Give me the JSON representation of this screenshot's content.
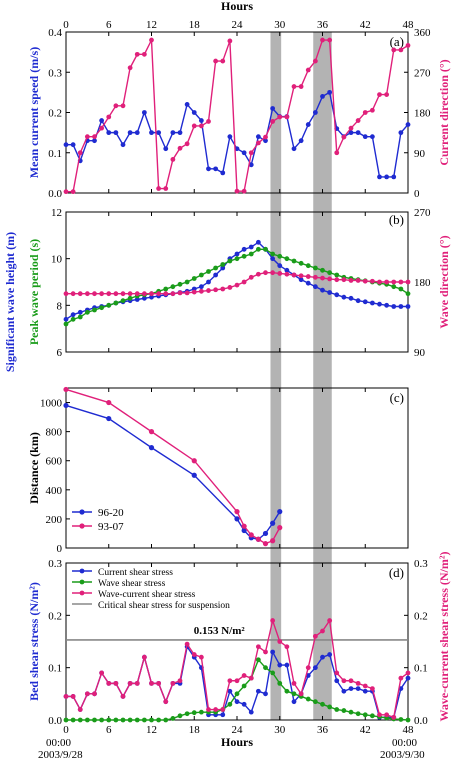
{
  "chart_data": [
    {
      "id": "a",
      "type": "line",
      "panel_label": "(a)",
      "top_axis_label": "Hours",
      "xlim": [
        0,
        48
      ],
      "xticks": [
        0,
        6,
        12,
        18,
        24,
        30,
        36,
        42,
        48
      ],
      "left_axis": {
        "label": "Mean current speed (m/s)",
        "ylim": [
          0,
          0.4
        ],
        "ticks": [
          "0.0",
          "0.1",
          "0.2",
          "0.3",
          "0.4"
        ],
        "color": "#1f2bd1"
      },
      "right_axis": {
        "label": "Current direction (°)",
        "ylim": [
          0,
          360
        ],
        "ticks": [
          "0",
          "90",
          "180",
          "270",
          "360"
        ],
        "color": "#e0207a"
      },
      "shaded_x": [
        [
          28.7,
          30.2
        ],
        [
          34.7,
          37.3
        ]
      ],
      "series": [
        {
          "axis": "left",
          "color": "#1f2bd1",
          "x": [
            0,
            1,
            2,
            3,
            4,
            5,
            6,
            7,
            8,
            9,
            10,
            11,
            12,
            13,
            14,
            15,
            16,
            17,
            18,
            19,
            20,
            21,
            22,
            23,
            24,
            25,
            26,
            27,
            28,
            29,
            30,
            31,
            32,
            33,
            34,
            35,
            36,
            37,
            38,
            39,
            40,
            41,
            42,
            43,
            44,
            45,
            46,
            47,
            48
          ],
          "y": [
            0.12,
            0.12,
            0.08,
            0.13,
            0.13,
            0.18,
            0.15,
            0.15,
            0.12,
            0.15,
            0.15,
            0.2,
            0.15,
            0.15,
            0.11,
            0.15,
            0.15,
            0.22,
            0.2,
            0.18,
            0.06,
            0.06,
            0.05,
            0.14,
            0.11,
            0.1,
            0.07,
            0.14,
            0.13,
            0.21,
            0.19,
            0.19,
            0.11,
            0.13,
            0.17,
            0.2,
            0.24,
            0.25,
            0.16,
            0.14,
            0.15,
            0.15,
            0.14,
            0.14,
            0.04,
            0.04,
            0.04,
            0.15,
            0.17
          ]
        },
        {
          "axis": "right",
          "color": "#e0207a",
          "x": [
            0,
            1,
            2,
            3,
            4,
            5,
            6,
            7,
            8,
            9,
            10,
            11,
            12,
            13,
            14,
            15,
            16,
            17,
            18,
            19,
            20,
            21,
            22,
            23,
            24,
            25,
            26,
            27,
            28,
            29,
            30,
            31,
            32,
            33,
            34,
            35,
            36,
            37,
            38,
            39,
            40,
            41,
            42,
            43,
            44,
            45,
            46,
            47,
            48
          ],
          "y": [
            3,
            3,
            90,
            126,
            126,
            145,
            170,
            195,
            195,
            280,
            310,
            310,
            342,
            10,
            10,
            75,
            100,
            110,
            150,
            150,
            160,
            295,
            295,
            340,
            4,
            4,
            90,
            112,
            125,
            160,
            170,
            170,
            238,
            238,
            275,
            295,
            342,
            342,
            90,
            125,
            145,
            162,
            180,
            185,
            220,
            220,
            320,
            320,
            330
          ]
        }
      ]
    },
    {
      "id": "b",
      "type": "line",
      "panel_label": "(b)",
      "xlim": [
        0,
        48
      ],
      "left_axis": {
        "label": "Significant wave height (m)",
        "label2": "Peak wave period (s)",
        "ylim": [
          6,
          12
        ],
        "ticks": [
          "6",
          "8",
          "10",
          "12"
        ]
      },
      "right_axis": {
        "label": "Wave direction (°)",
        "ylim": [
          90,
          270
        ],
        "ticks": [
          "90",
          "180",
          "270"
        ],
        "color": "#e0207a"
      },
      "series": [
        {
          "axis": "left",
          "color": "#1f2bd1",
          "x": [
            0,
            1,
            2,
            3,
            4,
            5,
            6,
            7,
            8,
            9,
            10,
            11,
            12,
            13,
            14,
            15,
            16,
            17,
            18,
            19,
            20,
            21,
            22,
            23,
            24,
            25,
            26,
            27,
            28,
            29,
            30,
            31,
            32,
            33,
            34,
            35,
            36,
            37,
            38,
            39,
            40,
            41,
            42,
            43,
            44,
            45,
            46,
            47,
            48
          ],
          "y": [
            7.4,
            7.6,
            7.7,
            7.8,
            7.9,
            7.95,
            8.0,
            8.1,
            8.15,
            8.2,
            8.25,
            8.3,
            8.35,
            8.4,
            8.45,
            8.5,
            8.55,
            8.6,
            8.7,
            8.8,
            9.0,
            9.3,
            9.6,
            10.0,
            10.2,
            10.4,
            10.5,
            10.7,
            10.4,
            10.0,
            9.7,
            9.5,
            9.3,
            9.1,
            8.95,
            8.8,
            8.65,
            8.55,
            8.45,
            8.35,
            8.3,
            8.2,
            8.15,
            8.1,
            8.05,
            8.0,
            7.95,
            7.95,
            7.95
          ]
        },
        {
          "axis": "left",
          "color": "#1a9c1a",
          "x": [
            0,
            1,
            2,
            3,
            4,
            5,
            6,
            7,
            8,
            9,
            10,
            11,
            12,
            13,
            14,
            15,
            16,
            17,
            18,
            19,
            20,
            21,
            22,
            23,
            24,
            25,
            26,
            27,
            28,
            29,
            30,
            31,
            32,
            33,
            34,
            35,
            36,
            37,
            38,
            39,
            40,
            41,
            42,
            43,
            44,
            45,
            46,
            47,
            48
          ],
          "y": [
            7.2,
            7.4,
            7.5,
            7.7,
            7.8,
            7.9,
            8.0,
            8.1,
            8.2,
            8.3,
            8.4,
            8.45,
            8.5,
            8.6,
            8.7,
            8.8,
            8.9,
            9.0,
            9.15,
            9.3,
            9.45,
            9.6,
            9.75,
            9.9,
            10.0,
            10.1,
            10.2,
            10.4,
            10.4,
            10.2,
            10.1,
            10.0,
            9.9,
            9.8,
            9.7,
            9.6,
            9.5,
            9.4,
            9.3,
            9.2,
            9.15,
            9.1,
            9.05,
            9.0,
            8.95,
            8.9,
            8.8,
            8.7,
            8.5
          ]
        },
        {
          "axis": "right",
          "color": "#e0207a",
          "x": [
            0,
            1,
            2,
            3,
            4,
            5,
            6,
            7,
            8,
            9,
            10,
            11,
            12,
            13,
            14,
            15,
            16,
            17,
            18,
            19,
            20,
            21,
            22,
            23,
            24,
            25,
            26,
            27,
            28,
            29,
            30,
            31,
            32,
            33,
            34,
            35,
            36,
            37,
            38,
            39,
            40,
            41,
            42,
            43,
            44,
            45,
            46,
            47,
            48
          ],
          "y": [
            165,
            165,
            165,
            165,
            165,
            165,
            165,
            165,
            165,
            165,
            165,
            165,
            165,
            165,
            165,
            165,
            166,
            166,
            167,
            168,
            169,
            170,
            171,
            173,
            176,
            180,
            186,
            190,
            192,
            192,
            191,
            190,
            189,
            188,
            187,
            186,
            185,
            184,
            183,
            183,
            182,
            182,
            181,
            181,
            180,
            180,
            180,
            180,
            180
          ]
        }
      ]
    },
    {
      "id": "c",
      "type": "line",
      "panel_label": "(c)",
      "xlim": [
        0,
        48
      ],
      "ylabel": "Distance (km)",
      "ylim": [
        0,
        1100
      ],
      "yticks": [
        "0",
        "200",
        "400",
        "600",
        "800",
        "1000"
      ],
      "series": [
        {
          "name": "96-20",
          "color": "#1f2bd1",
          "x": [
            0,
            6,
            12,
            18,
            24,
            25,
            26,
            27,
            28,
            29,
            30
          ],
          "y": [
            980,
            890,
            690,
            500,
            200,
            120,
            70,
            60,
            100,
            170,
            250
          ]
        },
        {
          "name": "93-07",
          "color": "#e0207a",
          "x": [
            0,
            6,
            12,
            18,
            24,
            25,
            26,
            27,
            28,
            29,
            30
          ],
          "y": [
            1090,
            1000,
            800,
            600,
            250,
            150,
            90,
            60,
            30,
            50,
            140
          ]
        }
      ]
    },
    {
      "id": "d",
      "type": "line",
      "panel_label": "(d)",
      "xlim": [
        0,
        48
      ],
      "xticks": [
        0,
        6,
        12,
        18,
        24,
        30,
        36,
        42,
        48
      ],
      "bottom_axis_label": "Hours",
      "x_start_label": [
        "00:00",
        "2003/9/28"
      ],
      "x_end_label": [
        "00:00",
        "2003/9/30"
      ],
      "left_axis": {
        "label": "Bed shear stress (N/m²)",
        "ylim": [
          0,
          0.3
        ],
        "ticks": [
          "0.0",
          "0.1",
          "0.2",
          "0.3"
        ],
        "color": "#1f2bd1"
      },
      "right_axis": {
        "label": "Wave-current shear stress (N/m²)",
        "ylim": [
          0,
          0.3
        ],
        "ticks": [
          "0.0",
          "0.1",
          "0.2",
          "0.3"
        ],
        "color": "#e0207a"
      },
      "shaded_x": [
        [
          28.7,
          30.2
        ],
        [
          34.7,
          37.3
        ]
      ],
      "critical_value": 0.153,
      "critical_label": "0.153 N/m²",
      "series": [
        {
          "name": "Current shear stress",
          "color": "#1f2bd1",
          "x": [
            0,
            1,
            2,
            3,
            4,
            5,
            6,
            7,
            8,
            9,
            10,
            11,
            12,
            13,
            14,
            15,
            16,
            17,
            18,
            19,
            20,
            21,
            22,
            23,
            24,
            25,
            26,
            27,
            28,
            29,
            30,
            31,
            32,
            33,
            34,
            35,
            36,
            37,
            38,
            39,
            40,
            41,
            42,
            43,
            44,
            45,
            46,
            47,
            48
          ],
          "y": [
            0.045,
            0.045,
            0.02,
            0.05,
            0.05,
            0.09,
            0.07,
            0.07,
            0.045,
            0.07,
            0.07,
            0.12,
            0.07,
            0.07,
            0.035,
            0.07,
            0.07,
            0.14,
            0.12,
            0.1,
            0.01,
            0.01,
            0.01,
            0.055,
            0.035,
            0.03,
            0.015,
            0.055,
            0.05,
            0.13,
            0.105,
            0.105,
            0.035,
            0.05,
            0.085,
            0.1,
            0.12,
            0.125,
            0.075,
            0.055,
            0.06,
            0.06,
            0.055,
            0.055,
            0.005,
            0.005,
            0.005,
            0.06,
            0.08
          ]
        },
        {
          "name": "Wave shear stress",
          "color": "#1a9c1a",
          "x": [
            0,
            1,
            2,
            3,
            4,
            5,
            6,
            7,
            8,
            9,
            10,
            11,
            12,
            13,
            14,
            15,
            16,
            17,
            18,
            19,
            20,
            21,
            22,
            23,
            24,
            25,
            26,
            27,
            28,
            29,
            30,
            31,
            32,
            33,
            34,
            35,
            36,
            37,
            38,
            39,
            40,
            41,
            42,
            43,
            44,
            45,
            46,
            47,
            48
          ],
          "y": [
            0,
            0,
            0,
            0,
            0,
            0,
            0,
            0,
            0,
            0,
            0,
            0,
            0,
            0,
            0,
            0.003,
            0.008,
            0.012,
            0.014,
            0.015,
            0.015,
            0.015,
            0.02,
            0.03,
            0.05,
            0.065,
            0.08,
            0.115,
            0.1,
            0.09,
            0.07,
            0.055,
            0.05,
            0.045,
            0.04,
            0.035,
            0.03,
            0.025,
            0.02,
            0.018,
            0.015,
            0.012,
            0.01,
            0.008,
            0.006,
            0.004,
            0.002,
            0.001,
            0
          ]
        },
        {
          "name": "Wave-current shear stress",
          "color": "#e0207a",
          "x": [
            0,
            1,
            2,
            3,
            4,
            5,
            6,
            7,
            8,
            9,
            10,
            11,
            12,
            13,
            14,
            15,
            16,
            17,
            18,
            19,
            20,
            21,
            22,
            23,
            24,
            25,
            26,
            27,
            28,
            29,
            30,
            31,
            32,
            33,
            34,
            35,
            36,
            37,
            38,
            39,
            40,
            41,
            42,
            43,
            44,
            45,
            46,
            47,
            48
          ],
          "y": [
            0.045,
            0.045,
            0.02,
            0.05,
            0.05,
            0.09,
            0.07,
            0.07,
            0.045,
            0.07,
            0.07,
            0.12,
            0.07,
            0.07,
            0.035,
            0.07,
            0.075,
            0.145,
            0.125,
            0.12,
            0.02,
            0.02,
            0.02,
            0.075,
            0.075,
            0.085,
            0.08,
            0.14,
            0.13,
            0.19,
            0.15,
            0.14,
            0.07,
            0.05,
            0.1,
            0.16,
            0.17,
            0.19,
            0.09,
            0.075,
            0.075,
            0.07,
            0.065,
            0.06,
            0.01,
            0.01,
            0.005,
            0.08,
            0.09
          ]
        },
        {
          "name": "Critical shear stress for suspension",
          "color": "#888888",
          "x": [
            0,
            48
          ],
          "y": [
            0.153,
            0.153
          ]
        }
      ]
    }
  ]
}
